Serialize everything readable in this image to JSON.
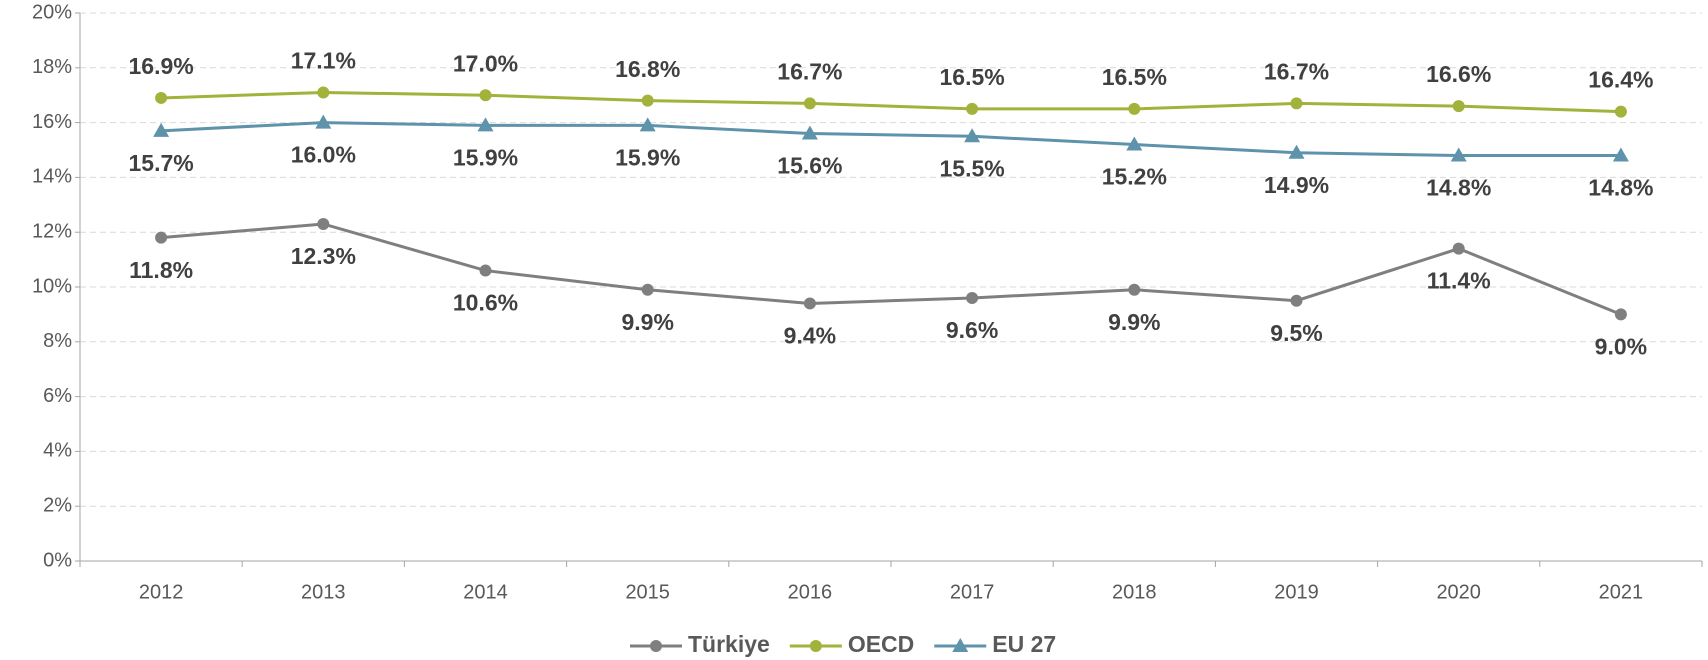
{
  "chart_data": {
    "type": "line",
    "categories": [
      "2012",
      "2013",
      "2014",
      "2015",
      "2016",
      "2017",
      "2018",
      "2019",
      "2020",
      "2021"
    ],
    "series": [
      {
        "name": "Türkiye",
        "color": "#7f7f7f",
        "marker": "circle",
        "values": [
          11.8,
          12.3,
          10.6,
          9.9,
          9.4,
          9.6,
          9.9,
          9.5,
          11.4,
          9.0
        ],
        "value_labels": [
          "11.8%",
          "12.3%",
          "10.6%",
          "9.9%",
          "9.4%",
          "9.6%",
          "9.9%",
          "9.5%",
          "11.4%",
          "9.0%"
        ]
      },
      {
        "name": "OECD",
        "color": "#a2b23a",
        "marker": "circle",
        "values": [
          16.9,
          17.1,
          17.0,
          16.8,
          16.7,
          16.5,
          16.5,
          16.7,
          16.6,
          16.4
        ],
        "value_labels": [
          "16.9%",
          "17.1%",
          "17.0%",
          "16.8%",
          "16.7%",
          "16.5%",
          "16.5%",
          "16.7%",
          "16.6%",
          "16.4%"
        ]
      },
      {
        "name": "EU 27",
        "color": "#5f93ab",
        "marker": "triangle",
        "values": [
          15.7,
          16.0,
          15.9,
          15.9,
          15.6,
          15.5,
          15.2,
          14.9,
          14.8,
          14.8
        ],
        "value_labels": [
          "15.7%",
          "16.0%",
          "15.9%",
          "15.9%",
          "15.6%",
          "15.5%",
          "15.2%",
          "14.9%",
          "14.8%",
          "14.8%"
        ]
      }
    ],
    "ylim": [
      0,
      20
    ],
    "yticks": [
      {
        "value": 0,
        "label": "0%"
      },
      {
        "value": 2,
        "label": "2%"
      },
      {
        "value": 4,
        "label": "4%"
      },
      {
        "value": 6,
        "label": "6%"
      },
      {
        "value": 8,
        "label": "8%"
      },
      {
        "value": 10,
        "label": "10%"
      },
      {
        "value": 12,
        "label": "12%"
      },
      {
        "value": 14,
        "label": "14%"
      },
      {
        "value": 16,
        "label": "16%"
      },
      {
        "value": 18,
        "label": "18%"
      },
      {
        "value": 20,
        "label": "20%"
      }
    ],
    "grid": true,
    "legend": "bottom"
  }
}
